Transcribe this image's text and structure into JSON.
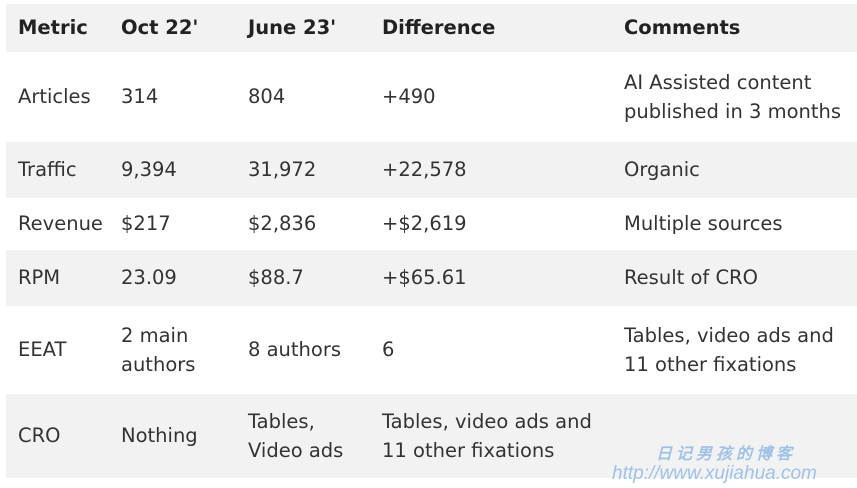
{
  "table": {
    "headers": [
      "Metric",
      "Oct 22'",
      "June 23'",
      "Difference",
      "Comments"
    ],
    "rows": [
      [
        "Articles",
        "314",
        "804",
        "+490",
        "AI Assisted content published in 3 months"
      ],
      [
        "Traffic",
        "9,394",
        "31,972",
        "+22,578",
        "Organic"
      ],
      [
        "Revenue",
        "$217",
        "$2,836",
        "+$2,619",
        "Multiple sources"
      ],
      [
        "RPM",
        "23.09",
        "$88.7",
        "+$65.61",
        "Result of CRO"
      ],
      [
        "EEAT",
        "2 main authors",
        "8 authors",
        "6",
        "Tables, video ads and 11 other fixations"
      ],
      [
        "CRO",
        "Nothing",
        "Tables, Video ads",
        "Tables, video ads and 11 other fixations",
        ""
      ]
    ]
  },
  "watermark": {
    "line1": "日记男孩的博客",
    "line2": "http://www.xujiahua.com"
  }
}
